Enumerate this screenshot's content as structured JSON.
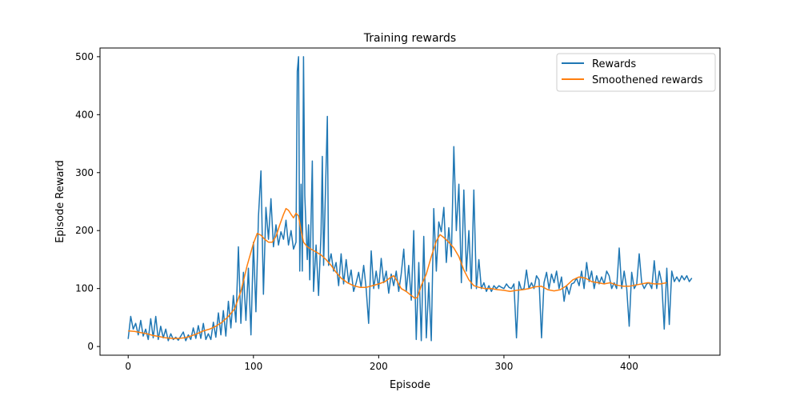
{
  "chart_data": {
    "type": "line",
    "title": "Training rewards",
    "xlabel": "Episode",
    "ylabel": "Episode Reward",
    "xlim": [
      -22.5,
      472.5
    ],
    "ylim": [
      -15,
      515
    ],
    "xticks": [
      0,
      100,
      200,
      300,
      400
    ],
    "yticks": [
      0,
      100,
      200,
      300,
      400,
      500
    ],
    "grid": false,
    "legend_position": "top-right",
    "series": [
      {
        "name": "Rewards",
        "color": "#1f77b4",
        "points": [
          [
            0,
            13
          ],
          [
            2,
            52
          ],
          [
            4,
            30
          ],
          [
            6,
            40
          ],
          [
            8,
            20
          ],
          [
            10,
            45
          ],
          [
            12,
            18
          ],
          [
            14,
            30
          ],
          [
            16,
            12
          ],
          [
            18,
            48
          ],
          [
            20,
            15
          ],
          [
            22,
            52
          ],
          [
            24,
            12
          ],
          [
            26,
            35
          ],
          [
            28,
            15
          ],
          [
            30,
            30
          ],
          [
            32,
            10
          ],
          [
            34,
            22
          ],
          [
            36,
            12
          ],
          [
            38,
            16
          ],
          [
            40,
            11
          ],
          [
            42,
            18
          ],
          [
            44,
            25
          ],
          [
            46,
            10
          ],
          [
            48,
            20
          ],
          [
            50,
            12
          ],
          [
            52,
            32
          ],
          [
            54,
            14
          ],
          [
            56,
            36
          ],
          [
            58,
            14
          ],
          [
            60,
            40
          ],
          [
            62,
            12
          ],
          [
            64,
            22
          ],
          [
            66,
            12
          ],
          [
            68,
            42
          ],
          [
            70,
            16
          ],
          [
            72,
            58
          ],
          [
            74,
            20
          ],
          [
            76,
            62
          ],
          [
            78,
            18
          ],
          [
            80,
            78
          ],
          [
            82,
            32
          ],
          [
            84,
            88
          ],
          [
            86,
            42
          ],
          [
            88,
            172
          ],
          [
            90,
            40
          ],
          [
            92,
            128
          ],
          [
            94,
            45
          ],
          [
            96,
            135
          ],
          [
            98,
            20
          ],
          [
            100,
            180
          ],
          [
            102,
            60
          ],
          [
            104,
            225
          ],
          [
            106,
            303
          ],
          [
            108,
            90
          ],
          [
            110,
            240
          ],
          [
            112,
            185
          ],
          [
            114,
            255
          ],
          [
            116,
            172
          ],
          [
            118,
            210
          ],
          [
            120,
            175
          ],
          [
            122,
            198
          ],
          [
            124,
            185
          ],
          [
            126,
            218
          ],
          [
            128,
            175
          ],
          [
            130,
            200
          ],
          [
            132,
            168
          ],
          [
            134,
            180
          ],
          [
            135,
            475
          ],
          [
            136,
            500
          ],
          [
            137,
            130
          ],
          [
            138,
            280
          ],
          [
            139,
            130
          ],
          [
            140,
            500
          ],
          [
            141,
            260
          ],
          [
            143,
            150
          ],
          [
            144,
            210
          ],
          [
            145,
            115
          ],
          [
            147,
            320
          ],
          [
            148,
            95
          ],
          [
            150,
            175
          ],
          [
            152,
            88
          ],
          [
            154,
            195
          ],
          [
            155,
            328
          ],
          [
            156,
            140
          ],
          [
            158,
            310
          ],
          [
            159,
            397
          ],
          [
            160,
            140
          ],
          [
            162,
            160
          ],
          [
            164,
            130
          ],
          [
            166,
            145
          ],
          [
            168,
            105
          ],
          [
            170,
            160
          ],
          [
            172,
            108
          ],
          [
            174,
            150
          ],
          [
            176,
            110
          ],
          [
            178,
            132
          ],
          [
            180,
            95
          ],
          [
            182,
            110
          ],
          [
            184,
            128
          ],
          [
            186,
            102
          ],
          [
            188,
            140
          ],
          [
            190,
            100
          ],
          [
            192,
            40
          ],
          [
            194,
            165
          ],
          [
            196,
            100
          ],
          [
            198,
            130
          ],
          [
            200,
            100
          ],
          [
            202,
            152
          ],
          [
            204,
            110
          ],
          [
            206,
            130
          ],
          [
            208,
            92
          ],
          [
            210,
            125
          ],
          [
            212,
            105
          ],
          [
            214,
            130
          ],
          [
            216,
            95
          ],
          [
            218,
            125
          ],
          [
            220,
            168
          ],
          [
            222,
            95
          ],
          [
            224,
            140
          ],
          [
            226,
            80
          ],
          [
            228,
            200
          ],
          [
            230,
            12
          ],
          [
            232,
            145
          ],
          [
            234,
            10
          ],
          [
            236,
            190
          ],
          [
            238,
            15
          ],
          [
            240,
            110
          ],
          [
            242,
            10
          ],
          [
            244,
            238
          ],
          [
            246,
            130
          ],
          [
            248,
            215
          ],
          [
            250,
            198
          ],
          [
            252,
            240
          ],
          [
            254,
            145
          ],
          [
            256,
            205
          ],
          [
            258,
            155
          ],
          [
            260,
            345
          ],
          [
            262,
            200
          ],
          [
            264,
            280
          ],
          [
            266,
            110
          ],
          [
            268,
            270
          ],
          [
            270,
            130
          ],
          [
            272,
            200
          ],
          [
            274,
            100
          ],
          [
            276,
            270
          ],
          [
            278,
            100
          ],
          [
            280,
            150
          ],
          [
            282,
            100
          ],
          [
            284,
            110
          ],
          [
            286,
            95
          ],
          [
            288,
            105
          ],
          [
            290,
            95
          ],
          [
            292,
            105
          ],
          [
            294,
            100
          ],
          [
            296,
            105
          ],
          [
            298,
            102
          ],
          [
            300,
            100
          ],
          [
            302,
            108
          ],
          [
            304,
            102
          ],
          [
            306,
            100
          ],
          [
            308,
            108
          ],
          [
            310,
            15
          ],
          [
            312,
            112
          ],
          [
            314,
            98
          ],
          [
            316,
            100
          ],
          [
            318,
            132
          ],
          [
            320,
            100
          ],
          [
            322,
            110
          ],
          [
            324,
            100
          ],
          [
            326,
            122
          ],
          [
            328,
            115
          ],
          [
            330,
            15
          ],
          [
            332,
            110
          ],
          [
            334,
            128
          ],
          [
            336,
            100
          ],
          [
            338,
            125
          ],
          [
            340,
            110
          ],
          [
            342,
            130
          ],
          [
            344,
            100
          ],
          [
            346,
            120
          ],
          [
            348,
            78
          ],
          [
            350,
            105
          ],
          [
            352,
            90
          ],
          [
            354,
            108
          ],
          [
            356,
            110
          ],
          [
            358,
            118
          ],
          [
            360,
            105
          ],
          [
            362,
            130
          ],
          [
            364,
            100
          ],
          [
            366,
            145
          ],
          [
            368,
            112
          ],
          [
            370,
            130
          ],
          [
            372,
            100
          ],
          [
            374,
            122
          ],
          [
            376,
            108
          ],
          [
            378,
            120
          ],
          [
            380,
            108
          ],
          [
            382,
            130
          ],
          [
            384,
            122
          ],
          [
            386,
            100
          ],
          [
            388,
            110
          ],
          [
            390,
            100
          ],
          [
            392,
            170
          ],
          [
            394,
            100
          ],
          [
            396,
            130
          ],
          [
            398,
            100
          ],
          [
            400,
            35
          ],
          [
            402,
            128
          ],
          [
            404,
            100
          ],
          [
            406,
            108
          ],
          [
            408,
            160
          ],
          [
            410,
            110
          ],
          [
            412,
            100
          ],
          [
            414,
            108
          ],
          [
            416,
            110
          ],
          [
            418,
            100
          ],
          [
            420,
            148
          ],
          [
            422,
            100
          ],
          [
            424,
            130
          ],
          [
            426,
            110
          ],
          [
            428,
            30
          ],
          [
            430,
            135
          ],
          [
            432,
            38
          ],
          [
            434,
            130
          ],
          [
            436,
            112
          ],
          [
            438,
            120
          ],
          [
            440,
            112
          ],
          [
            442,
            122
          ],
          [
            444,
            115
          ],
          [
            446,
            122
          ],
          [
            448,
            112
          ],
          [
            450,
            118
          ]
        ]
      },
      {
        "name": "Smoothened rewards",
        "color": "#ff7f0e",
        "points": [
          [
            0,
            27
          ],
          [
            5,
            26
          ],
          [
            10,
            24
          ],
          [
            15,
            22
          ],
          [
            20,
            19
          ],
          [
            25,
            17
          ],
          [
            30,
            15
          ],
          [
            35,
            14
          ],
          [
            40,
            14
          ],
          [
            45,
            15
          ],
          [
            50,
            18
          ],
          [
            55,
            22
          ],
          [
            60,
            27
          ],
          [
            65,
            30
          ],
          [
            70,
            35
          ],
          [
            75,
            42
          ],
          [
            80,
            52
          ],
          [
            85,
            65
          ],
          [
            90,
            95
          ],
          [
            95,
            140
          ],
          [
            100,
            178
          ],
          [
            103,
            195
          ],
          [
            106,
            192
          ],
          [
            109,
            185
          ],
          [
            112,
            180
          ],
          [
            115,
            180
          ],
          [
            118,
            190
          ],
          [
            121,
            210
          ],
          [
            124,
            228
          ],
          [
            126,
            238
          ],
          [
            128,
            235
          ],
          [
            130,
            228
          ],
          [
            132,
            222
          ],
          [
            134,
            230
          ],
          [
            136,
            225
          ],
          [
            138,
            200
          ],
          [
            140,
            180
          ],
          [
            143,
            172
          ],
          [
            146,
            168
          ],
          [
            150,
            163
          ],
          [
            154,
            158
          ],
          [
            158,
            150
          ],
          [
            162,
            140
          ],
          [
            166,
            128
          ],
          [
            170,
            118
          ],
          [
            175,
            110
          ],
          [
            180,
            105
          ],
          [
            185,
            102
          ],
          [
            190,
            102
          ],
          [
            195,
            105
          ],
          [
            200,
            108
          ],
          [
            205,
            112
          ],
          [
            210,
            120
          ],
          [
            212,
            122
          ],
          [
            215,
            112
          ],
          [
            218,
            100
          ],
          [
            222,
            95
          ],
          [
            226,
            88
          ],
          [
            229,
            83
          ],
          [
            231,
            85
          ],
          [
            234,
            105
          ],
          [
            238,
            125
          ],
          [
            242,
            155
          ],
          [
            246,
            182
          ],
          [
            249,
            193
          ],
          [
            252,
            188
          ],
          [
            256,
            180
          ],
          [
            260,
            170
          ],
          [
            264,
            155
          ],
          [
            268,
            132
          ],
          [
            272,
            115
          ],
          [
            276,
            105
          ],
          [
            280,
            102
          ],
          [
            285,
            100
          ],
          [
            290,
            100
          ],
          [
            295,
            98
          ],
          [
            300,
            97
          ],
          [
            305,
            95
          ],
          [
            310,
            97
          ],
          [
            315,
            98
          ],
          [
            320,
            100
          ],
          [
            325,
            103
          ],
          [
            330,
            104
          ],
          [
            335,
            98
          ],
          [
            340,
            96
          ],
          [
            345,
            98
          ],
          [
            350,
            105
          ],
          [
            355,
            115
          ],
          [
            360,
            120
          ],
          [
            365,
            118
          ],
          [
            370,
            112
          ],
          [
            375,
            110
          ],
          [
            380,
            108
          ],
          [
            385,
            110
          ],
          [
            390,
            106
          ],
          [
            395,
            104
          ],
          [
            400,
            104
          ],
          [
            405,
            106
          ],
          [
            410,
            108
          ],
          [
            415,
            110
          ],
          [
            420,
            108
          ],
          [
            425,
            108
          ],
          [
            430,
            110
          ]
        ]
      }
    ]
  }
}
